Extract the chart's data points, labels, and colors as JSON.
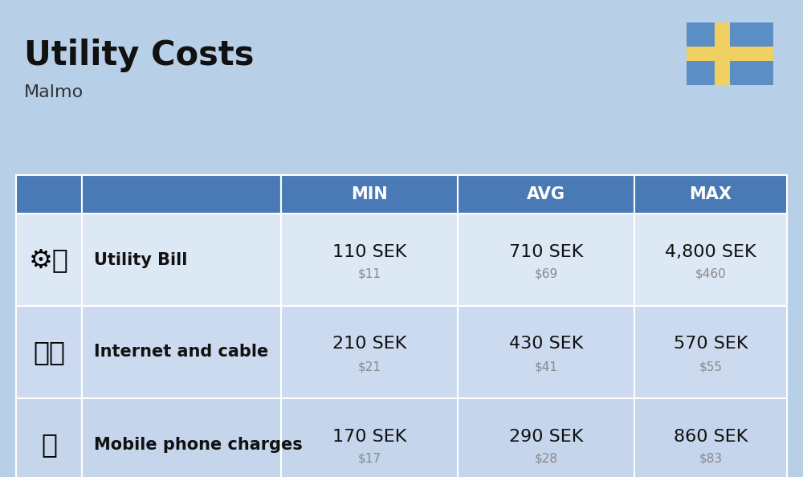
{
  "title": "Utility Costs",
  "subtitle": "Malmo",
  "background_color": "#b8cfe8",
  "header_color": "#4a7ab5",
  "header_text_color": "#ffffff",
  "row_color_1": "#dde8f5",
  "row_color_2": "#ccdaf0",
  "row_color_3": "#c5d5ec",
  "flag_blue": "#5b8ec4",
  "flag_yellow": "#f0d060",
  "rows": [
    {
      "label": "Utility Bill",
      "icon": "utility",
      "min_sek": "110 SEK",
      "min_usd": "$11",
      "avg_sek": "710 SEK",
      "avg_usd": "$69",
      "max_sek": "4,800 SEK",
      "max_usd": "$460"
    },
    {
      "label": "Internet and cable",
      "icon": "internet",
      "min_sek": "210 SEK",
      "min_usd": "$21",
      "avg_sek": "430 SEK",
      "avg_usd": "$41",
      "max_sek": "570 SEK",
      "max_usd": "$55"
    },
    {
      "label": "Mobile phone charges",
      "icon": "mobile",
      "min_sek": "170 SEK",
      "min_usd": "$17",
      "avg_sek": "290 SEK",
      "avg_usd": "$28",
      "max_sek": "860 SEK",
      "max_usd": "$83"
    }
  ],
  "header_labels": [
    "MIN",
    "AVG",
    "MAX"
  ],
  "title_fontsize": 30,
  "subtitle_fontsize": 16,
  "sek_fontsize": 16,
  "usd_fontsize": 11,
  "label_fontsize": 15,
  "header_fontsize": 15
}
